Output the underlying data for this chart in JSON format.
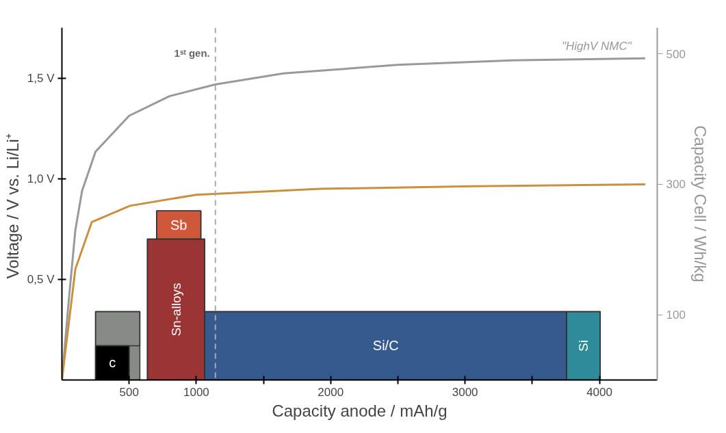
{
  "chart_data": {
    "type": "line",
    "xlabel": "Capacity anode / mAh/g",
    "ylabel": "Voltage / V  vs. Li/Li⁺",
    "y2label": "Capacity Cell / Wh/kg",
    "xlim": [
      0,
      4430
    ],
    "xticks": [
      500,
      1000,
      {
        "value": 1500,
        "label": null
      },
      2000,
      {
        "value": 2500,
        "label": null
      },
      3000,
      {
        "value": 3500,
        "label": null
      },
      4000
    ],
    "ylim": [
      0,
      1.75
    ],
    "yticks": [
      {
        "value": 0.5,
        "label": "0,5 V"
      },
      {
        "value": 1.0,
        "label": "1,0 V"
      },
      {
        "value": 1.5,
        "label": "1,5 V"
      }
    ],
    "y2lim": [
      0,
      540
    ],
    "y2ticks": [
      100,
      300,
      500
    ],
    "series": [
      {
        "type": "area",
        "name": null,
        "color": "#878a87",
        "x": [
          250,
          580
        ],
        "values": [
          0.34,
          0.34
        ]
      },
      {
        "type": "area",
        "name": "c",
        "color": "#000000",
        "x": [
          250,
          500
        ],
        "values": [
          0.17,
          0.17
        ]
      },
      {
        "type": "area",
        "name": "Sb",
        "color": "#d0583a",
        "x": [
          705,
          1034
        ],
        "values": [
          0.84,
          0.84
        ]
      },
      {
        "type": "area",
        "name": "Sn-alloys",
        "color": "#9b3535",
        "x": [
          636,
          1063
        ],
        "values": [
          0.7,
          0.7
        ]
      },
      {
        "type": "area",
        "name": "Si/C",
        "color": "#365a8e",
        "x": [
          1063,
          3756
        ],
        "values": [
          0.34,
          0.34
        ]
      },
      {
        "type": "area",
        "name": "Si",
        "color": "#2f8a9a",
        "x": [
          3756,
          4006
        ],
        "values": [
          0.34,
          0.34
        ]
      },
      {
        "axis": "y2",
        "name": "\"HighV NMC\"",
        "color": "#999999",
        "x": [
          0,
          50,
          100,
          150,
          250,
          500,
          800,
          1140,
          1650,
          2500,
          3350,
          4340
        ],
        "values": [
          0,
          120,
          230,
          290,
          350,
          405,
          435,
          453,
          470,
          483,
          490,
          493
        ]
      },
      {
        "axis": "y2",
        "name": null,
        "color": "#c8903f",
        "x": [
          0,
          100,
          222,
          506,
          1000,
          1926,
          3063,
          4340
        ],
        "values": [
          0,
          170,
          242,
          267,
          284,
          293,
          297,
          300
        ]
      }
    ],
    "ref_lines": [
      {
        "axis": "x",
        "value": 1142,
        "label": "1ˢᵗ gen.",
        "color": "#aaaaaa",
        "line_style": "dashed"
      }
    ],
    "tick_labels": "xy"
  }
}
